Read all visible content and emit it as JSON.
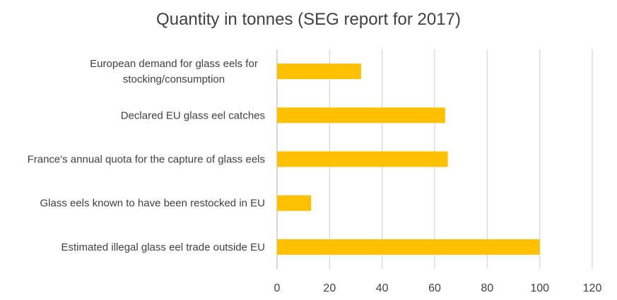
{
  "chart_data": {
    "type": "bar",
    "orientation": "horizontal",
    "title": "Quantity in tonnes (SEG report for 2017)",
    "categories": [
      [
        "European demand for glass eels for",
        "stocking/consumption"
      ],
      [
        "Declared EU glass eel catches"
      ],
      [
        "France's annual quota for the capture of glass eels"
      ],
      [
        "Glass eels known to have been restocked in EU"
      ],
      [
        "Estimated illegal glass eel trade outside EU"
      ]
    ],
    "values": [
      32,
      64,
      65,
      13,
      100
    ],
    "xlim": [
      0,
      120
    ],
    "xticks": [
      "0",
      "20",
      "40",
      "60",
      "80",
      "100",
      "120"
    ],
    "xlabel": "",
    "ylabel": "",
    "grid": true,
    "legend": "none",
    "colors": {
      "bar": "#FFC000",
      "grid": "#D9D9D9",
      "axis": "#BFBFBF",
      "text": "#404040",
      "title": "#404040"
    }
  }
}
